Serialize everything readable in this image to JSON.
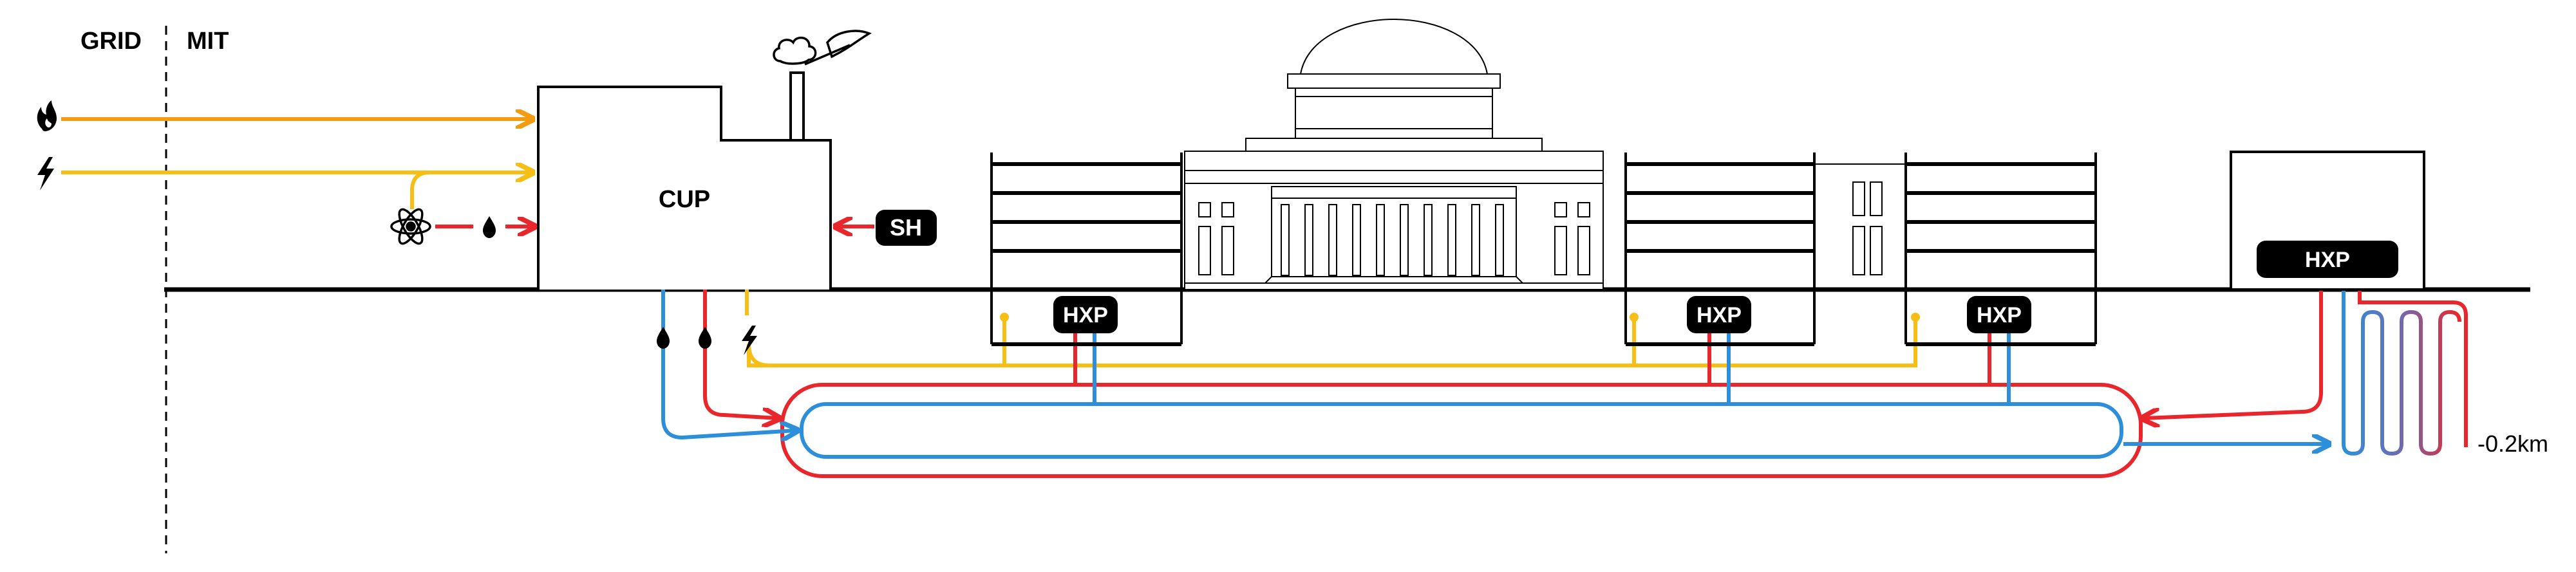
{
  "labels": {
    "grid": "GRID",
    "mit": "MIT",
    "cup": "CUP",
    "sh": "SH",
    "hxp": "HXP",
    "depth": "-0.2km"
  },
  "icons": {
    "gas": "flame-icon",
    "electricity": "lightning-icon",
    "nuclear": "atom-icon",
    "water": "water-drop-icon",
    "cloud": "steam-cloud-icon"
  },
  "colors": {
    "gas": "#F39C12",
    "electricity": "#F7BE16",
    "hot": "#E8262B",
    "cold": "#2D8FD9",
    "ink": "#000000",
    "fill": "#ffffff"
  }
}
